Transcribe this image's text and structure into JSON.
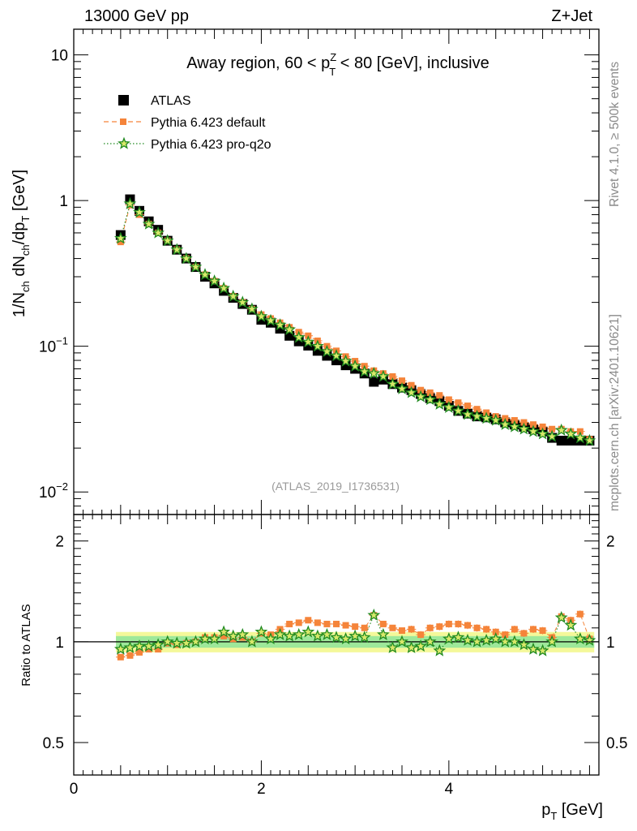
{
  "header": {
    "left": "13000 GeV pp",
    "right": "Z+Jet"
  },
  "side_labels": {
    "rivet": "Rivet 4.1.0, ≥ 500k events",
    "mcplots": "mcplots.cern.ch [arXiv:2401.10621]"
  },
  "chart_data": [
    {
      "type": "scatter",
      "panel": "main",
      "title_parts": {
        "before": "Away region, 60 < p",
        "sup": "Z",
        "sub": "T",
        "after": " < 80 [GeV], inclusive"
      },
      "analysis_id": "(ATLAS_2019_I1736531)",
      "ylabel_parts": [
        "1/N",
        "ch",
        " dN",
        "ch",
        "/dp",
        "T",
        " [GeV]"
      ],
      "yscale": "log",
      "ylim": [
        0.007,
        15
      ],
      "xlim": [
        0,
        5.6
      ],
      "y_ticks": [
        {
          "value": 10,
          "label": "10"
        },
        {
          "value": 1,
          "label": "1"
        },
        {
          "value": 0.1,
          "label": "10",
          "exp": "−1"
        },
        {
          "value": 0.01,
          "label": "10",
          "exp": "−2"
        }
      ],
      "legend": [
        {
          "name": "ATLAS",
          "marker": "square",
          "color": "#000000",
          "line": "none"
        },
        {
          "name": "Pythia 6.423 default",
          "marker": "square-small",
          "color": "#f5843a",
          "line": "dashed"
        },
        {
          "name": "Pythia 6.423 pro-q2o",
          "marker": "star",
          "color": "#208a20",
          "line": "dotted"
        }
      ],
      "x": [
        0.5,
        0.6,
        0.7,
        0.8,
        0.9,
        1.0,
        1.1,
        1.2,
        1.3,
        1.4,
        1.5,
        1.6,
        1.7,
        1.8,
        1.9,
        2.0,
        2.1,
        2.2,
        2.3,
        2.4,
        2.5,
        2.6,
        2.7,
        2.8,
        2.9,
        3.0,
        3.1,
        3.2,
        3.3,
        3.4,
        3.5,
        3.6,
        3.7,
        3.8,
        3.9,
        4.0,
        4.1,
        4.2,
        4.3,
        4.4,
        4.5,
        4.6,
        4.7,
        4.8,
        4.9,
        5.0,
        5.1,
        5.2,
        5.3,
        5.4,
        5.5
      ],
      "series": [
        {
          "name": "ATLAS",
          "values": [
            0.58,
            1.02,
            0.85,
            0.72,
            0.63,
            0.53,
            0.46,
            0.4,
            0.35,
            0.3,
            0.27,
            0.24,
            0.215,
            0.195,
            0.178,
            0.152,
            0.145,
            0.132,
            0.118,
            0.108,
            0.101,
            0.093,
            0.086,
            0.08,
            0.074,
            0.07,
            0.065,
            0.057,
            0.059,
            0.055,
            0.052,
            0.05,
            0.047,
            0.044,
            0.042,
            0.039,
            0.036,
            0.0345,
            0.033,
            0.0325,
            0.0315,
            0.03,
            0.029,
            0.028,
            0.027,
            0.026,
            0.0235,
            0.0225,
            0.0225,
            0.0225,
            0.0225
          ]
        },
        {
          "name": "Pythia 6.423 default",
          "values": [
            0.52,
            0.93,
            0.8,
            0.69,
            0.6,
            0.53,
            0.46,
            0.4,
            0.35,
            0.31,
            0.28,
            0.25,
            0.22,
            0.2,
            0.18,
            0.165,
            0.155,
            0.145,
            0.135,
            0.125,
            0.118,
            0.109,
            0.1,
            0.093,
            0.085,
            0.079,
            0.073,
            0.068,
            0.065,
            0.062,
            0.058,
            0.054,
            0.05,
            0.048,
            0.046,
            0.043,
            0.041,
            0.039,
            0.037,
            0.035,
            0.033,
            0.032,
            0.031,
            0.03,
            0.029,
            0.028,
            0.027,
            0.027,
            0.026,
            0.026,
            0.023
          ]
        },
        {
          "name": "Pythia 6.423 pro-q2o",
          "values": [
            0.55,
            0.95,
            0.83,
            0.69,
            0.6,
            0.53,
            0.46,
            0.4,
            0.35,
            0.31,
            0.28,
            0.25,
            0.22,
            0.2,
            0.18,
            0.16,
            0.15,
            0.14,
            0.13,
            0.115,
            0.107,
            0.1,
            0.092,
            0.086,
            0.079,
            0.073,
            0.067,
            0.065,
            0.062,
            0.055,
            0.051,
            0.048,
            0.045,
            0.043,
            0.04,
            0.038,
            0.036,
            0.034,
            0.033,
            0.032,
            0.031,
            0.029,
            0.028,
            0.027,
            0.026,
            0.025,
            0.024,
            0.0265,
            0.025,
            0.0235,
            0.0225
          ]
        }
      ]
    },
    {
      "type": "scatter",
      "panel": "ratio",
      "ylabel": "Ratio to ATLAS",
      "xlabel_parts": [
        "p",
        "T",
        " [GeV]"
      ],
      "yscale": "log",
      "ylim": [
        0.4,
        2.4
      ],
      "xlim": [
        0,
        5.6
      ],
      "y_ticks": [
        {
          "value": 2,
          "label": "2"
        },
        {
          "value": 1,
          "label": "1"
        },
        {
          "value": 0.5,
          "label": "0.5"
        }
      ],
      "x_ticks": [
        {
          "value": 0,
          "label": "0"
        },
        {
          "value": 2,
          "label": "2"
        },
        {
          "value": 4,
          "label": "4"
        }
      ],
      "band_inner": 0.04,
      "band_outer": 0.07,
      "series": [
        {
          "name": "Pythia 6.423 default",
          "values": [
            0.9,
            0.91,
            0.93,
            0.95,
            0.95,
            0.99,
            0.98,
            0.99,
            1.0,
            1.03,
            1.03,
            1.04,
            1.02,
            1.03,
            1.0,
            1.06,
            1.05,
            1.09,
            1.13,
            1.14,
            1.16,
            1.14,
            1.13,
            1.13,
            1.12,
            1.11,
            1.1,
            1.2,
            1.13,
            1.1,
            1.08,
            1.09,
            1.05,
            1.1,
            1.11,
            1.13,
            1.13,
            1.12,
            1.1,
            1.09,
            1.07,
            1.05,
            1.09,
            1.06,
            1.09,
            1.08,
            1.03,
            1.19,
            1.16,
            1.21,
            1.02
          ]
        },
        {
          "name": "Pythia 6.423 pro-q2o",
          "values": [
            0.95,
            0.96,
            0.97,
            0.97,
            0.98,
            1.0,
            0.99,
            0.99,
            1.0,
            1.02,
            1.02,
            1.07,
            1.04,
            1.05,
            1.0,
            1.07,
            1.02,
            1.05,
            1.04,
            1.05,
            1.07,
            1.04,
            1.05,
            1.03,
            1.02,
            1.04,
            1.03,
            1.2,
            1.05,
            0.96,
            1.0,
            0.96,
            0.97,
            1.0,
            0.94,
            1.02,
            1.03,
            1.01,
            1.0,
            1.01,
            1.02,
            1.0,
            1.0,
            0.98,
            0.95,
            0.94,
            1.0,
            1.18,
            1.12,
            1.02,
            1.01
          ]
        }
      ]
    }
  ]
}
